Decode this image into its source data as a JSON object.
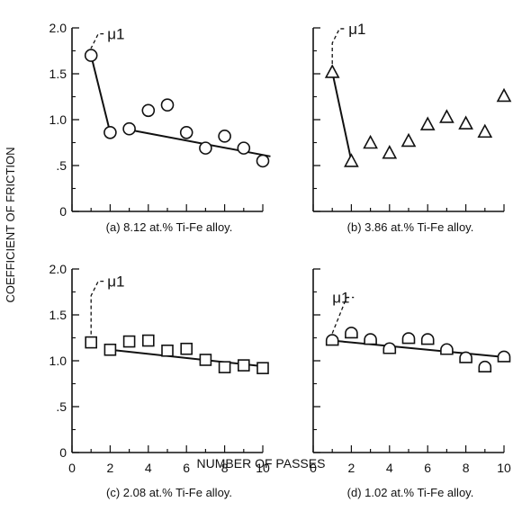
{
  "figure": {
    "ylabel": "COEFFICIENT OF FRICTION",
    "xlabel": "NUMBER OF PASSES",
    "mu_label": "μ1"
  },
  "chart_data": [
    {
      "type": "scatter",
      "panel": "a",
      "caption": "(a) 8.12 at.% Ti-Fe alloy.",
      "marker": "circle",
      "x": [
        1,
        2,
        3,
        4,
        5,
        6,
        7,
        8,
        9,
        10
      ],
      "y": [
        1.7,
        0.86,
        0.9,
        1.1,
        1.16,
        0.86,
        0.69,
        0.82,
        0.69,
        0.55
      ],
      "break_in_line": {
        "x": [
          1,
          2
        ],
        "y": [
          1.7,
          0.86
        ]
      },
      "trend_line": {
        "x": [
          3,
          10.4
        ],
        "y": [
          0.89,
          0.6
        ]
      },
      "xlim": [
        0,
        10
      ],
      "ylim": [
        0,
        2.0
      ],
      "yticks": [
        "0",
        ".5",
        "1.0",
        "1.5",
        "2.0"
      ],
      "xticks": []
    },
    {
      "type": "scatter",
      "panel": "b",
      "caption": "(b) 3.86 at.% Ti-Fe alloy.",
      "marker": "triangle",
      "x": [
        1,
        2,
        3,
        4,
        5,
        6,
        7,
        8,
        9,
        10
      ],
      "y": [
        1.52,
        0.55,
        0.75,
        0.64,
        0.77,
        0.95,
        1.03,
        0.96,
        0.87,
        1.26
      ],
      "break_in_line": {
        "x": [
          1,
          2
        ],
        "y": [
          1.52,
          0.55
        ]
      },
      "xlim": [
        0,
        10
      ],
      "ylim": [
        0,
        2.0
      ],
      "yticks": [],
      "xticks": []
    },
    {
      "type": "scatter",
      "panel": "c",
      "caption": "(c) 2.08 at.% Ti-Fe alloy.",
      "marker": "square",
      "x": [
        1,
        2,
        3,
        4,
        5,
        6,
        7,
        8,
        9,
        10
      ],
      "y": [
        1.2,
        1.12,
        1.21,
        1.22,
        1.11,
        1.13,
        1.01,
        0.93,
        0.95,
        0.92
      ],
      "trend_line": {
        "x": [
          2,
          10
        ],
        "y": [
          1.12,
          0.94
        ]
      },
      "xlim": [
        0,
        10
      ],
      "ylim": [
        0,
        2.0
      ],
      "yticks": [
        "0",
        ".5",
        "1.0",
        "1.5",
        "2.0"
      ],
      "xticks": [
        "0",
        "2",
        "4",
        "6",
        "8",
        "10"
      ]
    },
    {
      "type": "scatter",
      "panel": "d",
      "caption": "(d) 1.02 at.% Ti-Fe alloy.",
      "marker": "semicircle",
      "x": [
        1,
        2,
        3,
        4,
        5,
        6,
        7,
        8,
        9,
        10
      ],
      "y": [
        1.22,
        1.3,
        1.23,
        1.13,
        1.24,
        1.23,
        1.12,
        1.03,
        0.93,
        1.04
      ],
      "trend_line": {
        "x": [
          1,
          10
        ],
        "y": [
          1.22,
          1.04
        ]
      },
      "xlim": [
        0,
        10
      ],
      "ylim": [
        0,
        2.0
      ],
      "yticks": [],
      "xticks": [
        "0",
        "2",
        "4",
        "6",
        "8",
        "10"
      ]
    }
  ]
}
